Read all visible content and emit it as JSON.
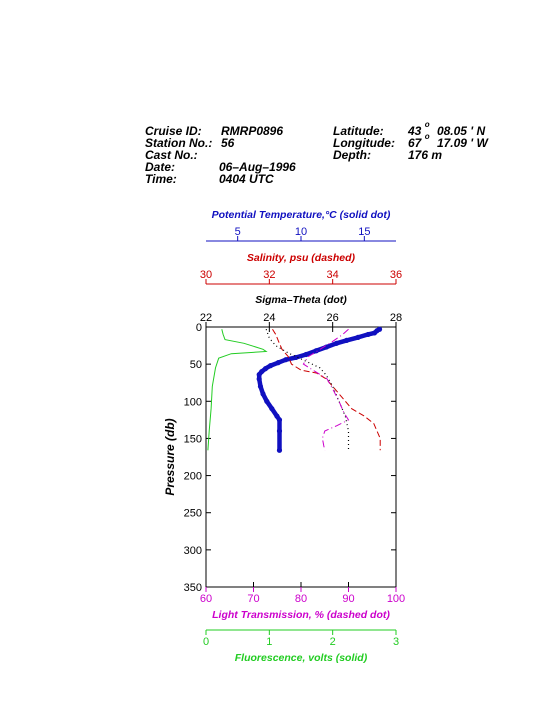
{
  "header": {
    "cruise_id_label": "Cruise ID:",
    "cruise_id_value": "RMRP0896",
    "station_label": "Station No.:",
    "station_value": "56",
    "cast_label": "Cast No.:",
    "date_label": "Date:",
    "date_value": "06–Aug–1996",
    "time_label": "Time:",
    "time_value": "0404 UTC",
    "latitude_label": "Latitude:",
    "latitude_deg": "43",
    "latitude_sup": "o",
    "latitude_min": "08.05 ' N",
    "longitude_label": "Longitude:",
    "longitude_deg": "67",
    "longitude_sup": "o",
    "longitude_min": "17.09 ' W",
    "depth_label": "Depth:",
    "depth_value": "176 m"
  },
  "chart_data": {
    "type": "line",
    "y_axis": {
      "label": "Pressure (db)",
      "range": [
        0,
        350
      ],
      "reversed": true,
      "ticks": [
        "0",
        "50",
        "100",
        "150",
        "200",
        "250",
        "300",
        "350"
      ]
    },
    "axes": {
      "temperature": {
        "label": "Potential Temperature,°C (solid dot)",
        "range": [
          2.5,
          17.5
        ],
        "ticks": [
          "5",
          "10",
          "15"
        ],
        "tick_values": [
          5,
          10,
          15
        ],
        "color": "#1010c0"
      },
      "salinity": {
        "label": "Salinity, psu  (dashed)",
        "range": [
          30,
          36
        ],
        "ticks": [
          "30",
          "32",
          "34",
          "36"
        ],
        "tick_values": [
          30,
          32,
          34,
          36
        ],
        "color": "#cc0000"
      },
      "sigma": {
        "label": "Sigma–Theta (dot)",
        "range": [
          22,
          28
        ],
        "ticks": [
          "22",
          "24",
          "26",
          "28"
        ],
        "tick_values": [
          22,
          24,
          26,
          28
        ],
        "color": "#000000"
      },
      "transmission": {
        "label": "Light Transmission, % (dashed dot)",
        "range": [
          60,
          100
        ],
        "ticks": [
          "60",
          "70",
          "80",
          "90",
          "100"
        ],
        "tick_values": [
          60,
          70,
          80,
          90,
          100
        ],
        "color": "#cc00cc"
      },
      "fluorescence": {
        "label": "Fluorescence, volts (solid)",
        "range": [
          0,
          3
        ],
        "ticks": [
          "0",
          "1",
          "2",
          "3"
        ],
        "tick_values": [
          0,
          1,
          2,
          3
        ],
        "color": "#22cc22"
      }
    },
    "series": [
      {
        "axis": "temperature",
        "style": "thick",
        "points": [
          [
            16.2,
            3
          ],
          [
            16.0,
            5
          ],
          [
            15.8,
            8
          ],
          [
            15.3,
            10
          ],
          [
            14.5,
            14
          ],
          [
            13.6,
            18
          ],
          [
            12.8,
            22
          ],
          [
            12.0,
            27
          ],
          [
            11.2,
            32
          ],
          [
            10.4,
            37
          ],
          [
            9.6,
            41
          ],
          [
            8.8,
            44
          ],
          [
            8.2,
            48
          ],
          [
            7.6,
            52
          ],
          [
            7.2,
            56
          ],
          [
            6.9,
            60
          ],
          [
            6.7,
            64
          ],
          [
            6.7,
            70
          ],
          [
            6.8,
            80
          ],
          [
            7.0,
            90
          ],
          [
            7.3,
            100
          ],
          [
            7.7,
            110
          ],
          [
            8.1,
            120
          ],
          [
            8.3,
            125
          ],
          [
            8.3,
            140
          ],
          [
            8.3,
            166
          ]
        ]
      },
      {
        "axis": "salinity",
        "style": "dashed",
        "points": [
          [
            32.1,
            3
          ],
          [
            32.2,
            10
          ],
          [
            32.3,
            20
          ],
          [
            32.4,
            30
          ],
          [
            32.6,
            40
          ],
          [
            32.7,
            50
          ],
          [
            33.0,
            58
          ],
          [
            33.5,
            62
          ],
          [
            33.8,
            70
          ],
          [
            34.0,
            80
          ],
          [
            34.3,
            95
          ],
          [
            34.6,
            110
          ],
          [
            35.0,
            120
          ],
          [
            35.3,
            130
          ],
          [
            35.4,
            140
          ],
          [
            35.5,
            150
          ],
          [
            35.5,
            166
          ]
        ]
      },
      {
        "axis": "sigma",
        "style": "dotted",
        "points": [
          [
            23.9,
            3
          ],
          [
            24.0,
            15
          ],
          [
            24.2,
            25
          ],
          [
            24.6,
            35
          ],
          [
            25.1,
            45
          ],
          [
            25.6,
            55
          ],
          [
            25.8,
            65
          ],
          [
            26.0,
            80
          ],
          [
            26.2,
            100
          ],
          [
            26.4,
            120
          ],
          [
            26.5,
            140
          ],
          [
            26.5,
            166
          ]
        ]
      },
      {
        "axis": "transmission",
        "style": "dashdot",
        "points": [
          [
            90.0,
            3
          ],
          [
            88.8,
            10
          ],
          [
            86.5,
            20
          ],
          [
            84.0,
            30
          ],
          [
            81.5,
            40
          ],
          [
            80.5,
            50
          ],
          [
            83.0,
            60
          ],
          [
            85.5,
            70
          ],
          [
            86.8,
            85
          ],
          [
            88.0,
            100
          ],
          [
            89.0,
            115
          ],
          [
            90.0,
            125
          ],
          [
            87.5,
            133
          ],
          [
            85.0,
            140
          ],
          [
            84.5,
            150
          ],
          [
            84.8,
            160
          ],
          [
            85.0,
            166
          ]
        ]
      },
      {
        "axis": "fluorescence",
        "style": "solid",
        "points": [
          [
            0.25,
            3
          ],
          [
            0.27,
            10
          ],
          [
            0.3,
            17
          ],
          [
            0.6,
            22
          ],
          [
            0.9,
            30
          ],
          [
            0.95,
            33
          ],
          [
            0.4,
            36
          ],
          [
            0.2,
            42
          ],
          [
            0.15,
            55
          ],
          [
            0.1,
            80
          ],
          [
            0.08,
            110
          ],
          [
            0.05,
            140
          ],
          [
            0.03,
            166
          ]
        ]
      }
    ]
  }
}
